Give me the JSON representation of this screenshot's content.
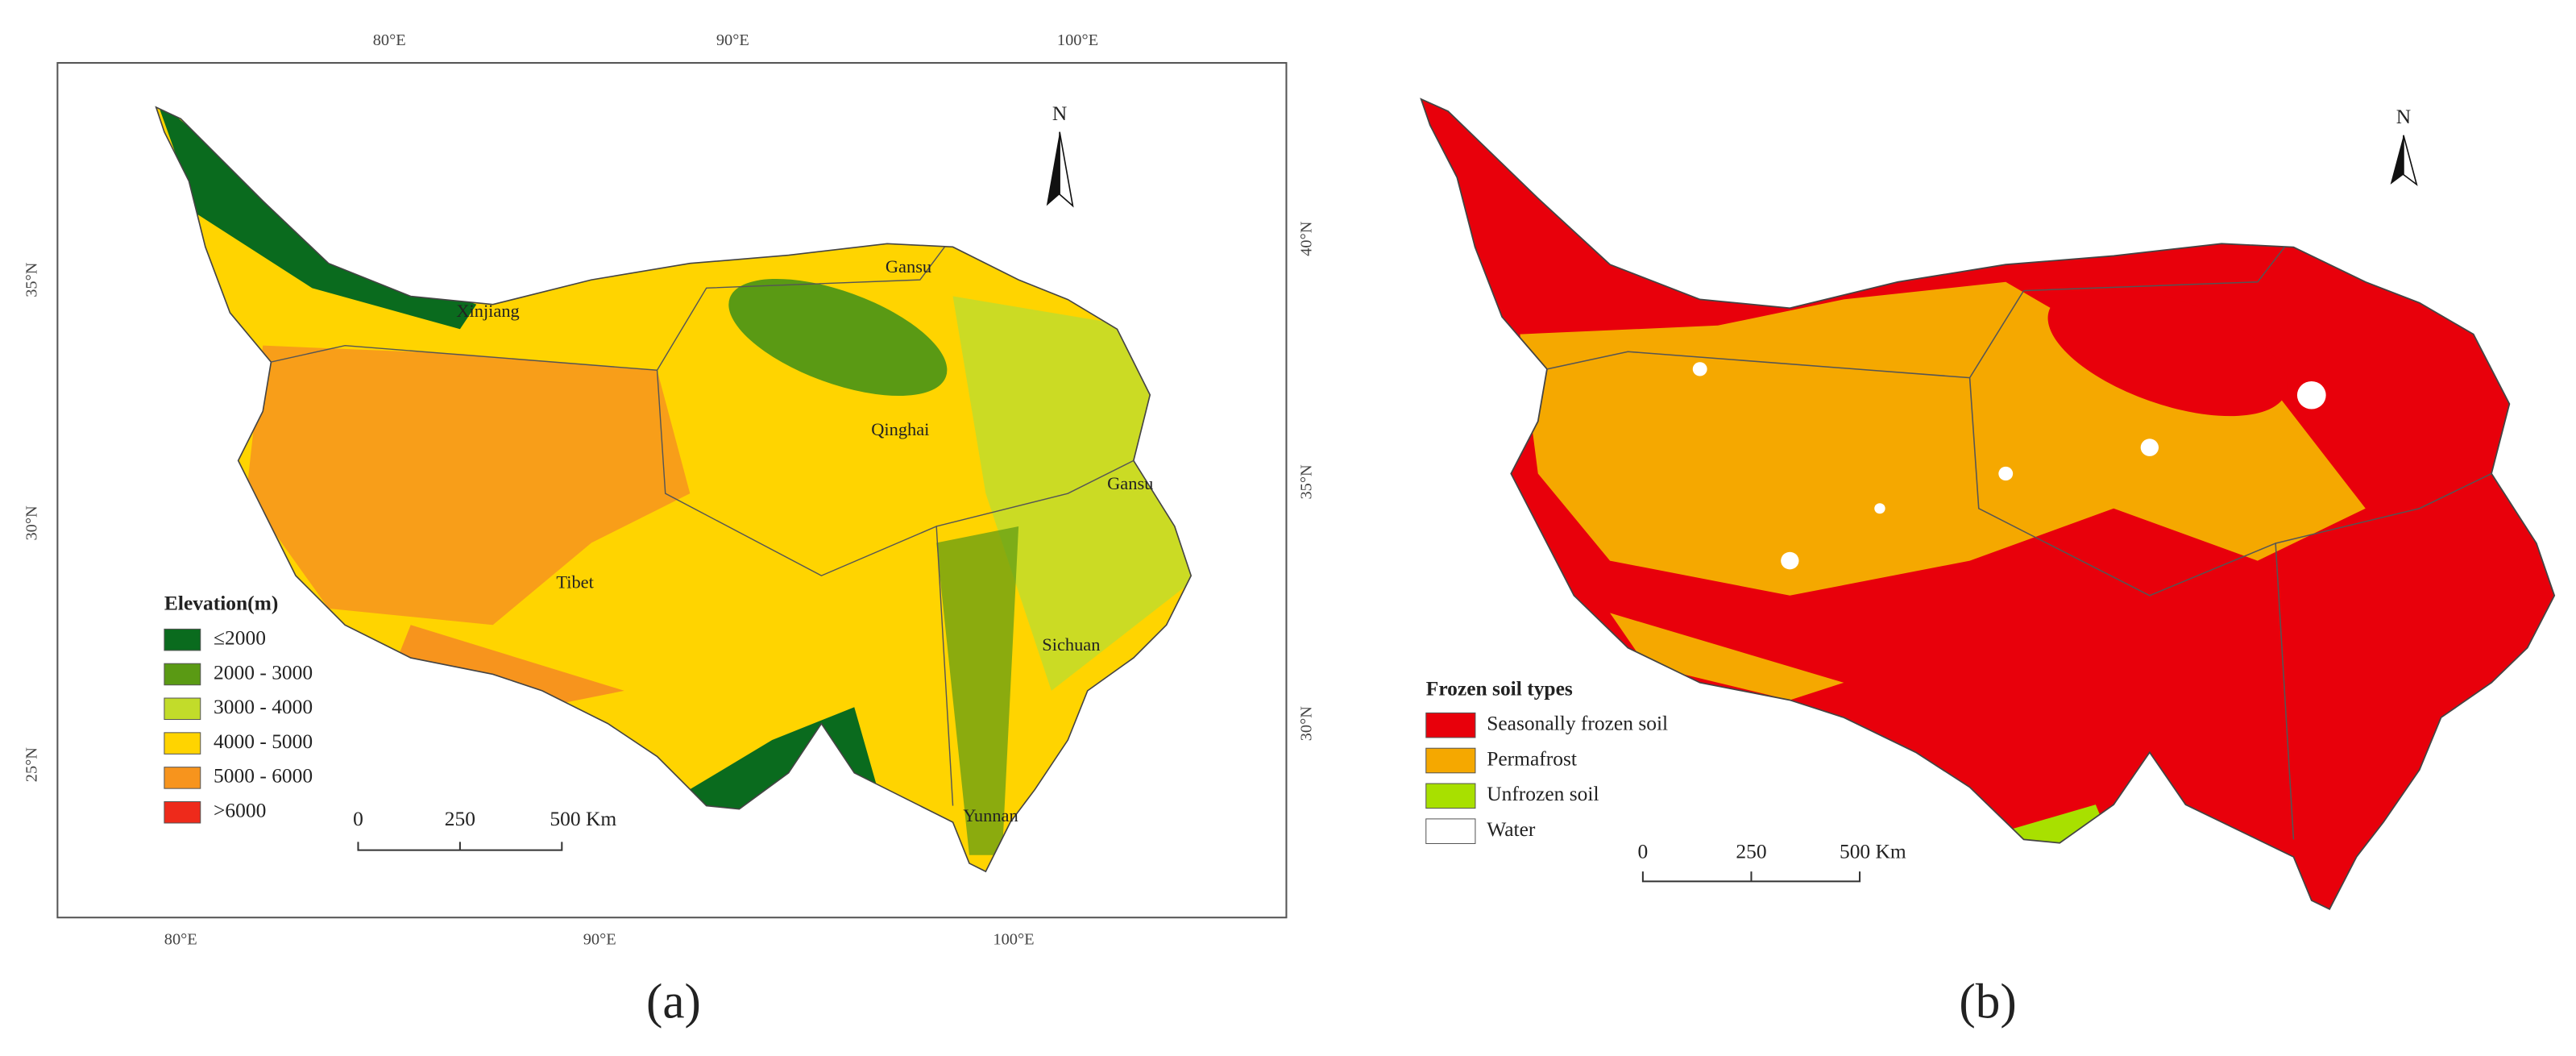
{
  "panels": [
    {
      "caption": "(a)",
      "graticule": {
        "top": [
          "80°E",
          "90°E",
          "100°E"
        ],
        "bottom": [
          "80°E",
          "90°E",
          "100°E"
        ],
        "left": [
          "35°N",
          "30°N",
          "25°N"
        ],
        "right": [
          "40°N",
          "35°N",
          "30°N"
        ]
      },
      "places": [
        "Xinjiang",
        "Gansu",
        "Qinghai",
        "Gansu",
        "Tibet",
        "Sichuan",
        "Yunnan"
      ],
      "legend": {
        "title": "Elevation(m)",
        "items": [
          {
            "label": "≤2000",
            "color": "#0a6b1e"
          },
          {
            "label": "2000 - 3000",
            "color": "#5a9a14"
          },
          {
            "label": "3000 - 4000",
            "color": "#c2dc2a"
          },
          {
            "label": "4000 - 5000",
            "color": "#ffd400"
          },
          {
            "label": "5000 - 6000",
            "color": "#f7941d"
          },
          {
            "label": ">6000",
            "color": "#ee2a1b"
          }
        ]
      },
      "scale_bar": [
        "0",
        "250",
        "500 Km"
      ],
      "north": "N"
    },
    {
      "caption": "(b)",
      "legend": {
        "title": "Frozen soil types",
        "items": [
          {
            "label": "Seasonally frozen soil",
            "color": "#e8000b"
          },
          {
            "label": "Permafrost",
            "color": "#f5a800"
          },
          {
            "label": "Unfrozen soil",
            "color": "#a8e000"
          },
          {
            "label": "Water",
            "color": "#ffffff"
          }
        ]
      },
      "scale_bar": [
        "0",
        "250",
        "500 Km"
      ],
      "north": "N"
    }
  ]
}
